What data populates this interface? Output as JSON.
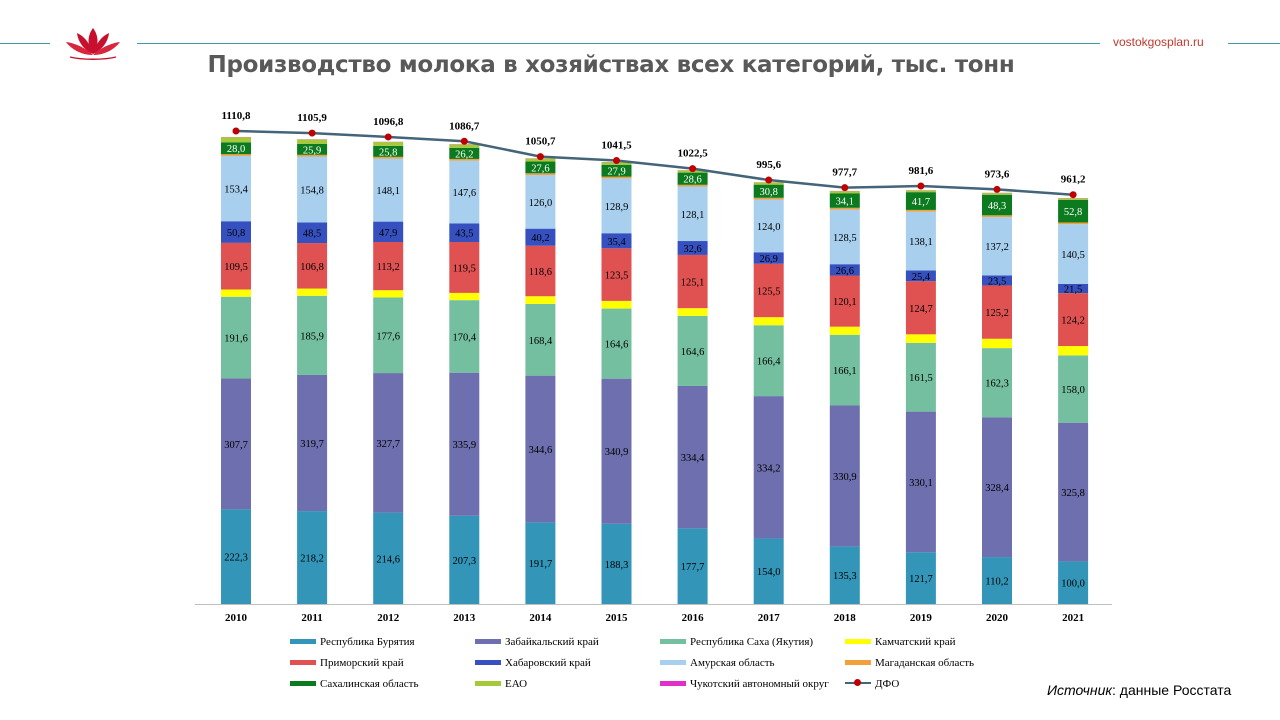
{
  "header": {
    "site": "vostokgosplan.ru",
    "logo_icon": "lotus-logo-icon",
    "title": "Производство молока в хозяйствах всех категорий, тыс. тонн"
  },
  "source": {
    "label": "Источник",
    "text": ": данные Росстата"
  },
  "chart_data": {
    "type": "bar",
    "stacked": true,
    "title": "Производство молока в хозяйствах всех категорий, тыс. тонн",
    "categories": [
      "2010",
      "2011",
      "2012",
      "2013",
      "2014",
      "2015",
      "2016",
      "2017",
      "2018",
      "2019",
      "2020",
      "2021"
    ],
    "ylim": [
      0,
      1110.8
    ],
    "grid": false,
    "legend_position": "bottom",
    "series": [
      {
        "name": "Республика Бурятия",
        "color": "#3396b8",
        "labeled": true,
        "values": [
          222.3,
          218.2,
          214.6,
          207.3,
          191.7,
          188.3,
          177.7,
          154.0,
          135.3,
          121.7,
          110.2,
          100.0
        ],
        "labels": [
          "222,3",
          "218,2",
          "214,6",
          "207,3",
          "191,7",
          "188,3",
          "177,7",
          "154,0",
          "135,3",
          "121,7",
          "110,2",
          "100,0"
        ]
      },
      {
        "name": "Забайкальский край",
        "color": "#6e6fae",
        "labeled": true,
        "values": [
          307.7,
          319.7,
          327.7,
          335.9,
          344.6,
          340.9,
          334.4,
          334.2,
          330.9,
          330.1,
          328.4,
          325.8
        ],
        "labels": [
          "307,7",
          "319,7",
          "327,7",
          "335,9",
          "344,6",
          "340,9",
          "334,4",
          "334,2",
          "330,9",
          "330,1",
          "328,4",
          "325,8"
        ]
      },
      {
        "name": "Республика Саха (Якутия)",
        "color": "#74bfa0",
        "labeled": true,
        "values": [
          191.6,
          185.9,
          177.6,
          170.4,
          168.4,
          164.6,
          164.6,
          166.4,
          166.1,
          161.5,
          162.3,
          158.0
        ],
        "labels": [
          "191,6",
          "185,9",
          "177,6",
          "170,4",
          "168,4",
          "164,6",
          "164,6",
          "166,4",
          "166,1",
          "161,5",
          "162,3",
          "158,0"
        ]
      },
      {
        "name": "Камчатский  край",
        "color": "#ffff00",
        "labeled": false,
        "values": [
          17,
          17,
          17,
          17,
          18,
          18,
          18,
          19,
          19,
          20,
          22,
          22
        ]
      },
      {
        "name": "Приморский край",
        "color": "#e05252",
        "labeled": true,
        "values": [
          109.5,
          106.8,
          113.2,
          119.5,
          118.6,
          123.5,
          125.1,
          125.5,
          120.1,
          124.7,
          125.2,
          124.2
        ],
        "labels": [
          "109,5",
          "106,8",
          "113,2",
          "119,5",
          "118,6",
          "123,5",
          "125,1",
          "125,5",
          "120,1",
          "124,7",
          "125,2",
          "124,2"
        ]
      },
      {
        "name": "Хабаровский край",
        "color": "#3650c0",
        "labeled": true,
        "values": [
          50.8,
          48.5,
          47.9,
          43.5,
          40.2,
          35.4,
          32.6,
          26.9,
          26.6,
          25.4,
          23.5,
          21.5
        ],
        "labels": [
          "50,8",
          "48,5",
          "47,9",
          "43,5",
          "40,2",
          "35,4",
          "32,6",
          "26,9",
          "26,6",
          "25,4",
          "23,5",
          "21,5"
        ]
      },
      {
        "name": "Амурская область",
        "color": "#a8d0ee",
        "labeled": true,
        "values": [
          153.4,
          154.8,
          148.1,
          147.6,
          126.0,
          128.9,
          128.1,
          124.0,
          128.5,
          138.1,
          137.2,
          140.5
        ],
        "labels": [
          "153,4",
          "154,8",
          "148,1",
          "147,6",
          "126,0",
          "128,9",
          "128,1",
          "124,0",
          "128,5",
          "138,1",
          "137,2",
          "140,5"
        ]
      },
      {
        "name": "Магаданская область",
        "color": "#f2a03a",
        "labeled": false,
        "values": [
          4,
          4,
          4,
          4,
          4,
          4,
          4,
          4,
          4,
          4,
          4,
          4
        ]
      },
      {
        "name": "Сахалинская  область",
        "color": "#0c7a1e",
        "labeled": true,
        "values": [
          28.0,
          25.9,
          25.8,
          26.2,
          27.6,
          27.9,
          28.6,
          30.8,
          34.1,
          41.7,
          48.3,
          52.8
        ],
        "labels": [
          "28,0",
          "25,9",
          "25,8",
          "26,2",
          "27,6",
          "27,9",
          "28,6",
          "30,8",
          "34,1",
          "41,7",
          "48,3",
          "52,8"
        ]
      },
      {
        "name": "ЕАО",
        "color": "#a6c93a",
        "labeled": false,
        "values": [
          12,
          10,
          9,
          8,
          7,
          6,
          5,
          5,
          5,
          4,
          4,
          4
        ]
      },
      {
        "name": "Чукотский автономный округ",
        "color": "#e030c8",
        "labeled": false,
        "values": [
          0.5,
          0.5,
          0.5,
          0.5,
          0.5,
          0.5,
          0.5,
          0.5,
          0.5,
          0.5,
          0.5,
          0.5
        ]
      }
    ],
    "line": {
      "name": "ДФО",
      "color": "#44647a",
      "marker_color": "#c00000",
      "values": [
        1110.8,
        1105.9,
        1096.8,
        1086.7,
        1050.7,
        1041.5,
        1022.5,
        995.6,
        977.7,
        981.6,
        973.6,
        961.2
      ],
      "labels": [
        "1110,8",
        "1105,9",
        "1096,8",
        "1086,7",
        "1050,7",
        "1041,5",
        "1022,5",
        "995,6",
        "977,7",
        "981,6",
        "973,6",
        "961,2"
      ]
    }
  }
}
